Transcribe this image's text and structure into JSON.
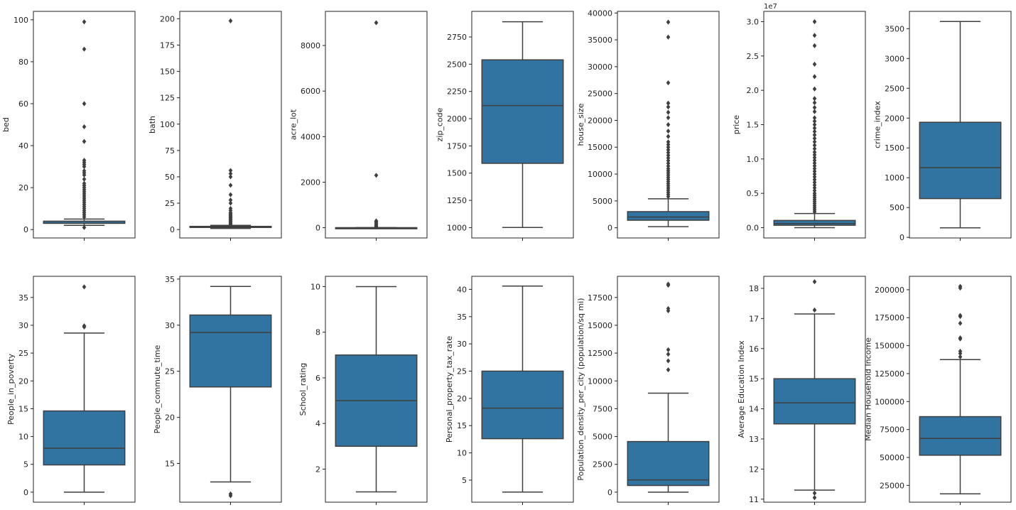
{
  "colors": {
    "box_fill": "#3274a1",
    "line": "#3f3f3f",
    "outlier": "#3f3f3f",
    "frame": "#222222"
  },
  "chart_data": [
    {
      "type": "box",
      "ylabel": "bed",
      "ylim": [
        -4,
        104
      ],
      "ticks": [
        0,
        20,
        40,
        60,
        80,
        100
      ],
      "tick_labels": [
        "0",
        "20",
        "40",
        "60",
        "80",
        "100"
      ],
      "scale_label": "",
      "whisker_low": 2,
      "q1": 3,
      "median": 3,
      "q3": 4,
      "whisker_high": 5,
      "outliers": [
        1,
        6,
        7,
        8,
        9,
        10,
        11,
        12,
        13,
        14,
        15,
        16,
        17,
        18,
        19,
        20,
        21,
        22,
        24,
        26,
        27,
        28,
        30,
        31,
        32,
        33,
        42,
        49,
        60,
        86,
        99
      ]
    },
    {
      "type": "box",
      "ylabel": "bath",
      "ylim": [
        -8,
        207
      ],
      "ticks": [
        0,
        25,
        50,
        75,
        100,
        125,
        150,
        175,
        200
      ],
      "tick_labels": [
        "0",
        "25",
        "50",
        "75",
        "100",
        "125",
        "150",
        "175",
        "200"
      ],
      "scale_label": "",
      "whisker_low": 1,
      "q1": 2,
      "median": 2,
      "q3": 3,
      "whisker_high": 4,
      "outliers": [
        5,
        6,
        7,
        8,
        9,
        10,
        11,
        12,
        13,
        14,
        15,
        16,
        18,
        20,
        25,
        28,
        33,
        42,
        50,
        53,
        56,
        198
      ]
    },
    {
      "type": "box",
      "ylabel": "acre_lot",
      "ylim": [
        -450,
        9500
      ],
      "ticks": [
        0,
        2000,
        4000,
        6000,
        8000
      ],
      "tick_labels": [
        "0",
        "2000",
        "4000",
        "6000",
        "8000"
      ],
      "scale_label": "",
      "whisker_low": 0,
      "q1": 0.1,
      "median": 0.2,
      "q3": 0.4,
      "whisker_high": 1,
      "outliers": [
        30,
        60,
        100,
        150,
        200,
        250,
        300,
        2300,
        9000
      ]
    },
    {
      "type": "box",
      "ylabel": "zip_code",
      "ylim": [
        905,
        2985
      ],
      "ticks": [
        1000,
        1250,
        1500,
        1750,
        2000,
        2250,
        2500,
        2750
      ],
      "tick_labels": [
        "1000",
        "1250",
        "1500",
        "1750",
        "2000",
        "2250",
        "2500",
        "2750"
      ],
      "scale_label": "",
      "whisker_low": 1001,
      "q1": 1590,
      "median": 2120,
      "q3": 2540,
      "whisker_high": 2890,
      "outliers": []
    },
    {
      "type": "box",
      "ylabel": "house_size",
      "ylim": [
        -1900,
        40300
      ],
      "ticks": [
        0,
        5000,
        10000,
        15000,
        20000,
        25000,
        30000,
        35000,
        40000
      ],
      "tick_labels": [
        "0",
        "5000",
        "10000",
        "15000",
        "20000",
        "25000",
        "30000",
        "35000",
        "40000"
      ],
      "scale_label": "",
      "whisker_low": 200,
      "q1": 1400,
      "median": 2000,
      "q3": 3000,
      "whisker_high": 5400,
      "outliers": [
        5800,
        6200,
        6600,
        7000,
        7400,
        7800,
        8200,
        8600,
        9000,
        9400,
        9800,
        10200,
        10600,
        11000,
        11500,
        12000,
        12500,
        13000,
        13500,
        14000,
        14500,
        15000,
        15500,
        16000,
        17000,
        18000,
        19200,
        20500,
        21500,
        22500,
        23200,
        27000,
        35500,
        38300
      ]
    },
    {
      "type": "box",
      "ylabel": "price",
      "ylim": [
        -1500000,
        31500000
      ],
      "ticks": [
        0,
        5000000,
        10000000,
        15000000,
        20000000,
        25000000,
        30000000
      ],
      "tick_labels": [
        "0.0",
        "0.5",
        "1.0",
        "1.5",
        "2.0",
        "2.5",
        "3.0"
      ],
      "scale_label": "1e7",
      "whisker_low": 5000,
      "q1": 350000,
      "median": 600000,
      "q3": 1050000,
      "whisker_high": 2050000,
      "outliers": [
        2300000,
        2600000,
        2900000,
        3200000,
        3500000,
        3800000,
        4100000,
        4400000,
        4700000,
        5000000,
        5400000,
        5800000,
        6200000,
        6600000,
        7000000,
        7400000,
        7800000,
        8200000,
        8600000,
        9000000,
        9400000,
        9800000,
        10200000,
        10600000,
        11000000,
        11500000,
        12000000,
        12500000,
        13000000,
        13500000,
        14000000,
        14500000,
        15000000,
        15500000,
        16000000,
        16900000,
        17500000,
        18200000,
        18800000,
        20200000,
        22000000,
        23800000,
        26500000,
        28000000,
        30000000
      ]
    },
    {
      "type": "box",
      "ylabel": "crime_index",
      "ylim": [
        -10,
        3790
      ],
      "ticks": [
        0,
        500,
        1000,
        1500,
        2000,
        2500,
        3000,
        3500
      ],
      "tick_labels": [
        "0",
        "500",
        "1000",
        "1500",
        "2000",
        "2500",
        "3000",
        "3500"
      ],
      "scale_label": "",
      "whisker_low": 160,
      "q1": 650,
      "median": 1170,
      "q3": 1930,
      "whisker_high": 3620,
      "outliers": []
    },
    {
      "type": "box",
      "ylabel": "People_in_poverty",
      "ylim": [
        -1.8,
        38.8
      ],
      "ticks": [
        0,
        5,
        10,
        15,
        20,
        25,
        30,
        35
      ],
      "tick_labels": [
        "0",
        "5",
        "10",
        "15",
        "20",
        "25",
        "30",
        "35"
      ],
      "scale_label": "",
      "whisker_low": 0,
      "q1": 4.9,
      "median": 7.9,
      "q3": 14.6,
      "whisker_high": 28.6,
      "outliers": [
        29.7,
        29.9,
        36.9
      ]
    },
    {
      "type": "box",
      "ylabel": "People_commute_time",
      "ylim": [
        10.8,
        35.3
      ],
      "ticks": [
        15,
        20,
        25,
        30,
        35
      ],
      "tick_labels": [
        "15",
        "20",
        "25",
        "30",
        "35"
      ],
      "scale_label": "",
      "whisker_low": 13,
      "q1": 23.3,
      "median": 29.2,
      "q3": 31.1,
      "whisker_high": 34.2,
      "outliers": [
        11.5,
        11.7
      ]
    },
    {
      "type": "box",
      "ylabel": "School_rating",
      "ylim": [
        0.55,
        10.45
      ],
      "ticks": [
        2,
        4,
        6,
        8,
        10
      ],
      "tick_labels": [
        "2",
        "4",
        "6",
        "8",
        "10"
      ],
      "scale_label": "",
      "whisker_low": 1,
      "q1": 3,
      "median": 5,
      "q3": 7,
      "whisker_high": 10,
      "outliers": []
    },
    {
      "type": "box",
      "ylabel": "Personal_property_tax_rate",
      "ylim": [
        0.95,
        42.4
      ],
      "ticks": [
        5,
        10,
        15,
        20,
        25,
        30,
        35,
        40
      ],
      "tick_labels": [
        "5",
        "10",
        "15",
        "20",
        "25",
        "30",
        "35",
        "40"
      ],
      "scale_label": "",
      "whisker_low": 2.8,
      "q1": 12.6,
      "median": 18.2,
      "q3": 25,
      "whisker_high": 40.6,
      "outliers": []
    },
    {
      "type": "box",
      "ylabel": "Population_density_per_city (population/sq mi)",
      "ylim": [
        -900,
        19400
      ],
      "ticks": [
        0,
        2500,
        5000,
        7500,
        10000,
        12500,
        15000,
        17500
      ],
      "tick_labels": [
        "0",
        "2500",
        "5000",
        "7500",
        "10000",
        "12500",
        "15000",
        "17500"
      ],
      "scale_label": "",
      "whisker_low": 0,
      "q1": 600,
      "median": 1100,
      "q3": 4550,
      "whisker_high": 8900,
      "outliers": [
        11000,
        11800,
        12400,
        12800,
        16300,
        16500,
        18600,
        18700
      ]
    },
    {
      "type": "box",
      "ylabel": "Average Education Index",
      "ylim": [
        10.9,
        18.4
      ],
      "ticks": [
        11,
        12,
        13,
        14,
        15,
        16,
        17,
        18
      ],
      "tick_labels": [
        "11",
        "12",
        "13",
        "14",
        "15",
        "16",
        "17",
        "18"
      ],
      "scale_label": "",
      "whisker_low": 11.3,
      "q1": 13.5,
      "median": 14.2,
      "q3": 15,
      "whisker_high": 17.15,
      "outliers": [
        11.05,
        11.2,
        17.28,
        18.22
      ]
    },
    {
      "type": "box",
      "ylabel": "Median Household Income",
      "ylim": [
        10000,
        212000
      ],
      "ticks": [
        25000,
        50000,
        75000,
        100000,
        125000,
        150000,
        175000,
        200000
      ],
      "tick_labels": [
        "25000",
        "50000",
        "75000",
        "100000",
        "125000",
        "150000",
        "175000",
        "200000"
      ],
      "scale_label": "",
      "whisker_low": 17500,
      "q1": 52000,
      "median": 67000,
      "q3": 86500,
      "whisker_high": 137500,
      "outliers": [
        140000,
        143000,
        145000,
        156000,
        157000,
        170000,
        176000,
        177000,
        201500,
        203000
      ]
    }
  ]
}
